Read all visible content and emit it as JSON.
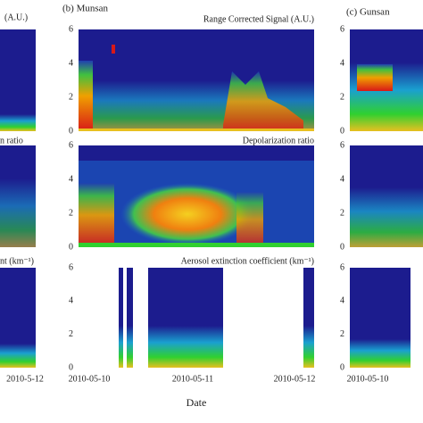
{
  "left": {
    "titles": [
      "(A.U.)",
      "n ratio",
      "nt (km⁻¹)"
    ],
    "xtick": "2010-5-12"
  },
  "middle": {
    "label": "(b) Munsan",
    "titles": [
      "Range Corrected Signal (A.U.)",
      "Depolarization ratio",
      "Aerosol extinction coefficient (km⁻¹)"
    ],
    "yticks": [
      [
        0,
        2,
        4,
        6
      ],
      [
        0,
        2,
        4,
        6
      ],
      [
        0,
        2,
        4,
        6
      ]
    ],
    "xticks": [
      "2010-05-10",
      "2010-05-11",
      "2010-05-12"
    ]
  },
  "right": {
    "label": "(c) Gunsan",
    "yticks": [
      [
        0,
        2,
        4,
        6
      ],
      [
        0,
        2,
        4,
        6
      ],
      [
        0,
        2,
        4,
        6
      ]
    ],
    "xtick": "2010-05-10"
  },
  "x_label": "Date"
}
